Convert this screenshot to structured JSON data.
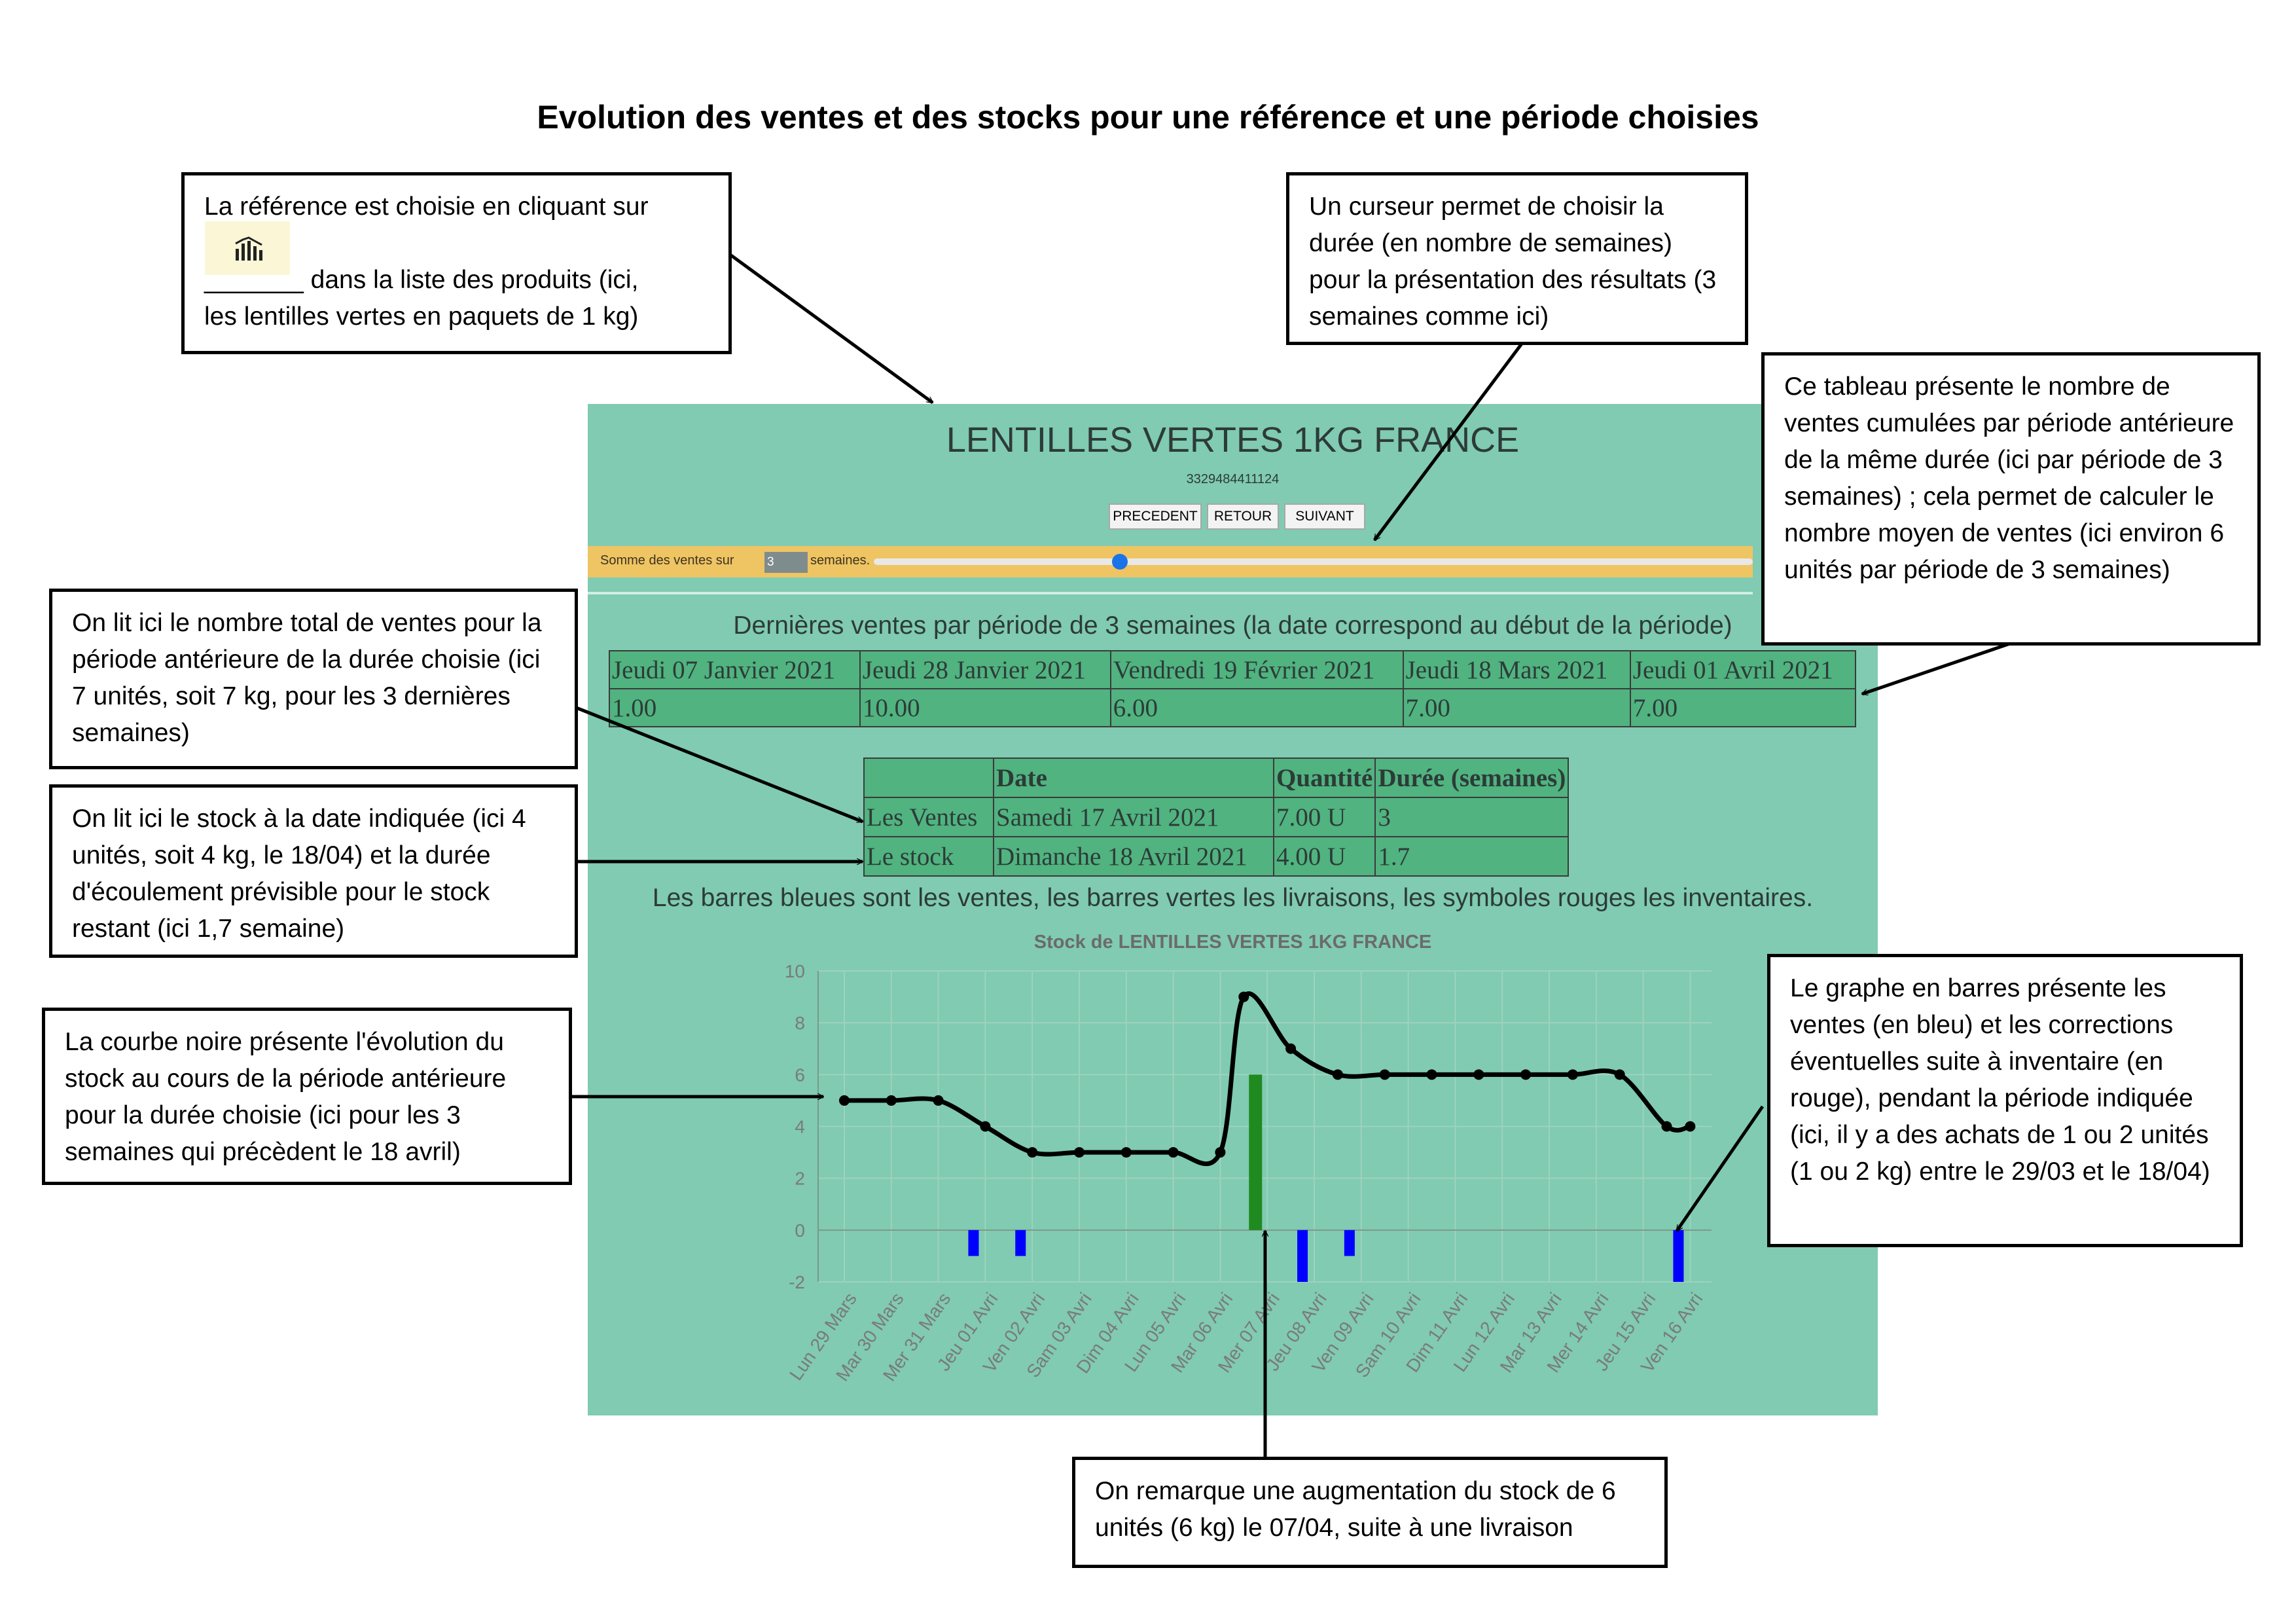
{
  "page_title": "Evolution des ventes et des stocks pour une référence et une période choisies",
  "notes": {
    "reference_line1": "La référence est choisie en cliquant sur",
    "reference_line2": "_______ dans la liste des produits (ici,",
    "reference_line3": "les lentilles vertes en paquets de 1 kg)",
    "cursor": "Un curseur permet de choisir la durée (en nombre de semaines) pour la présentation des résultats (3 semaines comme ici)",
    "table": "Ce tableau présente le nombre de ventes cumulées par période antérieure de la même durée (ici par période de 3 semaines) ; cela permet de calculer le nombre moyen de ventes (ici environ 6 unités par période de 3 semaines)",
    "total_sales": "On lit ici le nombre total de ventes pour la période antérieure de la durée choisie (ici 7 unités, soit 7 kg, pour les 3 dernières semaines)",
    "stock": "On lit ici le stock à la date indiquée (ici 4 unités, soit 4 kg, le 18/04) et la durée d'écoulement prévisible pour le stock restant (ici 1,7 semaine)",
    "curve": "La courbe noire présente l'évolution du stock au cours de la période antérieure pour la durée choisie (ici pour les 3 semaines qui précèdent le 18 avril)",
    "bars": "Le graphe en barres présente les ventes (en bleu) et les corrections éventuelles suite à inventaire (en rouge), pendant la période indiquée (ici, il y a des achats de 1 ou 2 unités (1 ou 2 kg) entre le 29/03 et le 18/04)",
    "delivery": "On remarque une augmentation du stock de 6 unités (6 kg) le 07/04, suite à une livraison"
  },
  "app": {
    "product_title": "LENTILLES VERTES 1KG FRANCE",
    "product_code": "3329484411124",
    "buttons": {
      "previous": "PRECEDENT",
      "back": "RETOUR",
      "next": "SUIVANT"
    },
    "sum_label": "Somme des ventes sur",
    "weeks_value": "3",
    "weeks_suffix": "semaines.",
    "slider_fraction": 0.28,
    "sales_section_title": "Dernières ventes par période de 3 semaines (la date correspond au début de la période)",
    "sales_table": {
      "dates": [
        "Jeudi 07 Janvier 2021",
        "Jeudi 28 Janvier 2021",
        "Vendredi 19 Février 2021",
        "Jeudi 18 Mars 2021",
        "Jeudi 01 Avril 2021"
      ],
      "values": [
        "1.00",
        "10.00",
        "6.00",
        "7.00",
        "7.00"
      ]
    },
    "stock_table": {
      "headers": [
        "",
        "Date",
        "Quantité",
        "Durée (semaines)"
      ],
      "rows": [
        [
          "Les Ventes",
          "Samedi 17 Avril 2021",
          "7.00 U",
          "3"
        ],
        [
          "Le stock",
          "Dimanche 18 Avril 2021",
          "4.00 U",
          "1.7"
        ]
      ]
    },
    "legend_text": "Les barres bleues sont les ventes, les barres vertes les livraisons, les symboles rouges les inventaires."
  },
  "colors": {
    "app_bg": "#80cbb2",
    "table_bg": "#50b380",
    "band": "#efc463",
    "sales": "#0000ff",
    "delivery": "#1f8a1f",
    "stock_line": "#000000"
  },
  "icons": {
    "reference": "bar-chart-icon"
  },
  "chart_data": {
    "type": "line",
    "title": "Stock de LENTILLES VERTES 1KG FRANCE",
    "categories": [
      "Lun 29 Mars",
      "Mar 30 Mars",
      "Mer 31 Mars",
      "Jeu 01 Avri",
      "Ven 02 Avri",
      "Sam 03 Avri",
      "Dim 04 Avri",
      "Lun 05 Avri",
      "Mar 06 Avri",
      "Mer 07 Avri",
      "Jeu 08 Avri",
      "Ven 09 Avri",
      "Sam 10 Avri",
      "Dim 11 Avri",
      "Lun 12 Avri",
      "Mar 13 Avri",
      "Mer 14 Avri",
      "Jeu 15 Avri",
      "Ven 16 Avri"
    ],
    "yticks": [
      "10",
      "8",
      "6",
      "4",
      "2",
      "0",
      "-2"
    ],
    "ylim": [
      -2,
      10
    ],
    "grid": true,
    "series": [
      {
        "kind": "line",
        "color": "#000000",
        "x": [
          0,
          1,
          2,
          3,
          4,
          5,
          6,
          7,
          8,
          8.5,
          9.5,
          10.5,
          11.5,
          12.5,
          13.5,
          14.5,
          15.5,
          16.5,
          17.5,
          18
        ],
        "values": [
          5,
          5,
          5,
          4,
          3,
          3,
          3,
          3,
          3,
          9,
          7,
          6,
          6,
          6,
          6,
          6,
          6,
          6,
          4,
          4
        ]
      },
      {
        "kind": "bar",
        "color": "#0000ff",
        "x": [
          2.75,
          3.75,
          9.75,
          10.75,
          17.75
        ],
        "values": [
          -1,
          -1,
          -2,
          -1,
          -2
        ]
      },
      {
        "kind": "bar",
        "color": "#1f8a1f",
        "x": [
          8.75
        ],
        "values": [
          6
        ]
      }
    ]
  }
}
